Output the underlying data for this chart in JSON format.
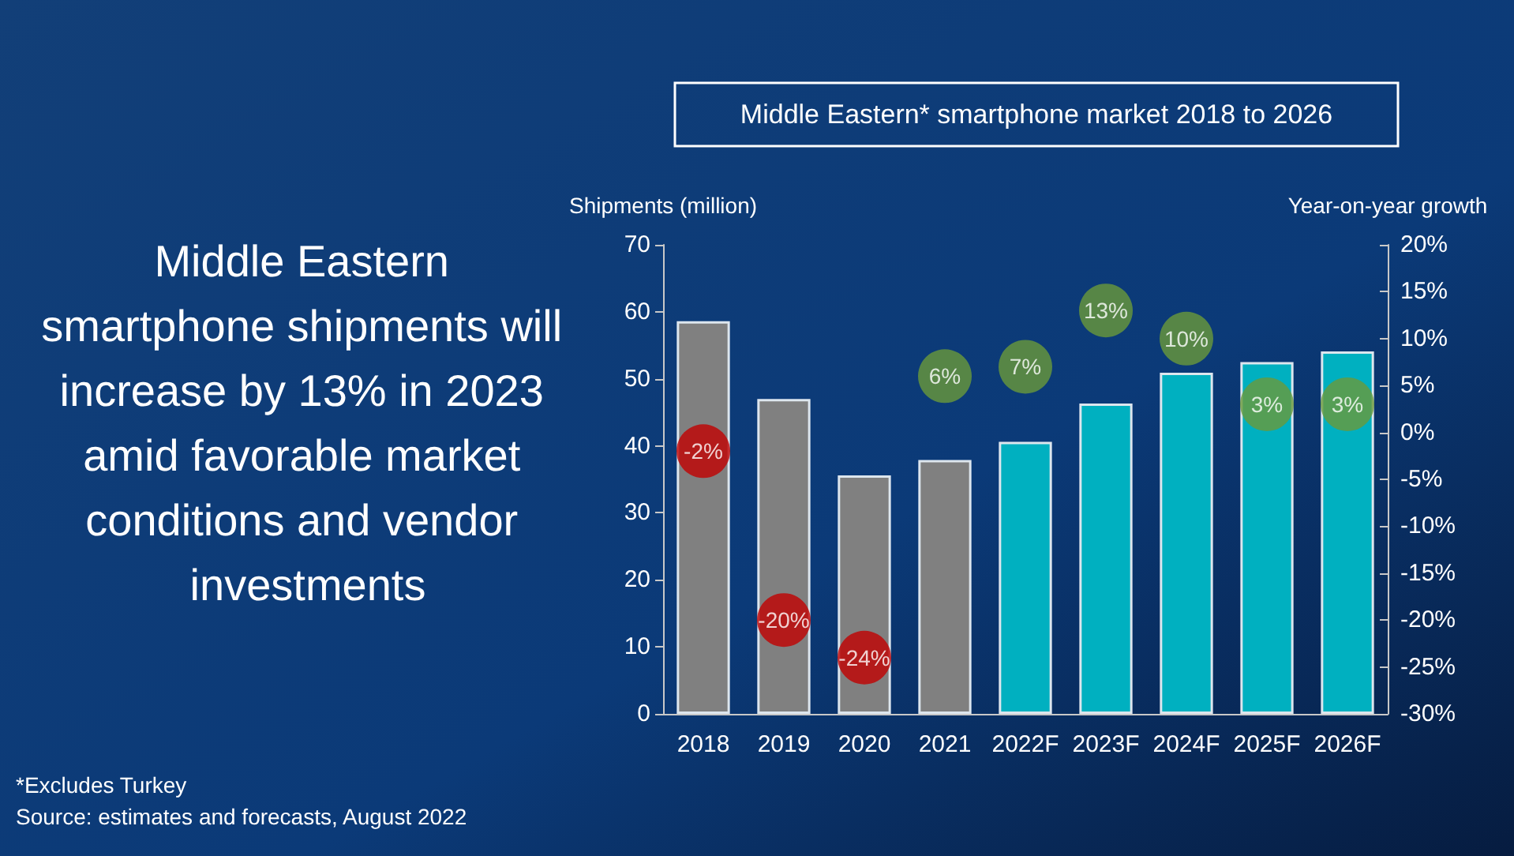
{
  "chart_data": {
    "type": "bar",
    "title": "Middle Eastern* smartphone market 2018 to 2026",
    "subtitle": "Middle Eastern smartphone shipments will increase by 13% in 2023 amid favorable market conditions and vendor investments",
    "ylabel": "Shipments (million)",
    "y2label": "Year-on-year growth",
    "categories": [
      "2018",
      "2019",
      "2020",
      "2021",
      "2022F",
      "2023F",
      "2024F",
      "2025F",
      "2026F"
    ],
    "series": [
      {
        "colors": [
          "#808080",
          "#808080",
          "#808080",
          "#808080",
          "#00b0c0",
          "#00b0c0",
          "#00b0c0",
          "#00b0c0",
          "#00b0c0"
        ],
        "values": [
          58.6,
          47.0,
          35.6,
          37.9,
          40.6,
          46.3,
          50.9,
          52.5,
          54.1
        ]
      },
      {
        "type": "scatter",
        "axis": "y2",
        "marker": "circle",
        "colors": [
          "#c00000",
          "#c00000",
          "#c00000",
          "#6a9a3a",
          "#6a9a3a",
          "#6a9a3a",
          "#6a9a3a",
          "#6a9a3a",
          "#6a9a3a"
        ],
        "values": [
          -2,
          -20,
          -24,
          6,
          7,
          13,
          10,
          3,
          3
        ],
        "value_labels": [
          "-2%",
          "-20%",
          "-24%",
          "6%",
          "7%",
          "13%",
          "10%",
          "3%",
          "3%"
        ]
      }
    ],
    "ylim": [
      0,
      70
    ],
    "yticks": [
      0,
      10,
      20,
      30,
      40,
      50,
      60,
      70
    ],
    "y2lim": [
      -30,
      20
    ],
    "y2ticks": [
      {
        "value": -30,
        "label": "-30%"
      },
      {
        "value": -25,
        "label": "-25%"
      },
      {
        "value": -20,
        "label": "-20%"
      },
      {
        "value": -15,
        "label": "-15%"
      },
      {
        "value": -10,
        "label": "-10%"
      },
      {
        "value": -5,
        "label": "-5%"
      },
      {
        "value": 0,
        "label": "0%"
      },
      {
        "value": 5,
        "label": "5%"
      },
      {
        "value": 10,
        "label": "10%"
      },
      {
        "value": 15,
        "label": "15%"
      },
      {
        "value": 20,
        "label": "20%"
      }
    ],
    "annotations": [
      "*Excludes Turkey",
      "Source: estimates and forecasts, August 2022"
    ],
    "grid": false
  }
}
